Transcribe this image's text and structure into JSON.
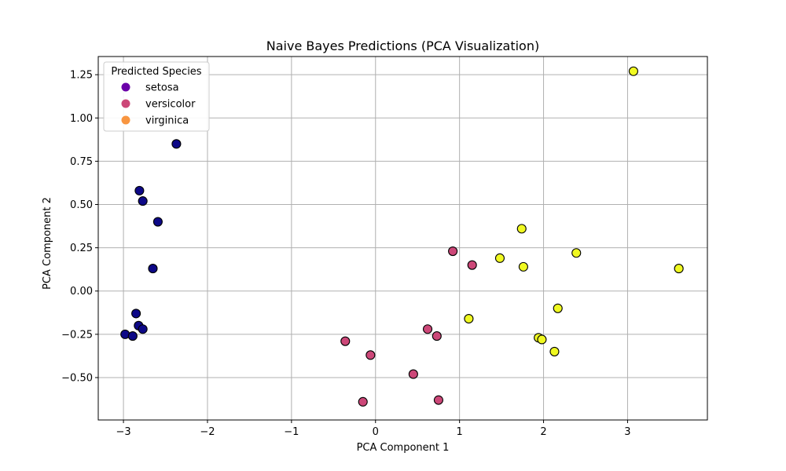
{
  "chart_data": {
    "type": "scatter",
    "title": "Naive Bayes Predictions (PCA Visualization)",
    "xlabel": "PCA Component 1",
    "ylabel": "PCA Component 2",
    "xlim": [
      -3.3,
      3.95
    ],
    "ylim": [
      -0.745,
      1.355
    ],
    "xticks": [
      -3,
      -2,
      -1,
      0,
      1,
      2,
      3
    ],
    "xtick_labels": [
      "−3",
      "−2",
      "−1",
      "0",
      "1",
      "2",
      "3"
    ],
    "yticks": [
      -0.5,
      -0.25,
      0.0,
      0.25,
      0.5,
      0.75,
      1.0,
      1.25
    ],
    "ytick_labels": [
      "−0.50",
      "−0.25",
      "0.00",
      "0.25",
      "0.50",
      "0.75",
      "1.00",
      "1.25"
    ],
    "grid": true,
    "legend": {
      "title": "Predicted Species",
      "placement": "top-left",
      "entries": [
        {
          "name": "setosa",
          "color": "#6a00a8"
        },
        {
          "name": "versicolor",
          "color": "#cc4778"
        },
        {
          "name": "virginica",
          "color": "#f89540"
        }
      ]
    },
    "series": [
      {
        "name": "setosa",
        "color": "#0d0887",
        "points": [
          [
            -2.37,
            0.85
          ],
          [
            -2.81,
            0.58
          ],
          [
            -2.77,
            0.52
          ],
          [
            -2.59,
            0.4
          ],
          [
            -2.65,
            0.13
          ],
          [
            -2.85,
            -0.13
          ],
          [
            -2.82,
            -0.2
          ],
          [
            -2.77,
            -0.22
          ],
          [
            -2.98,
            -0.25
          ],
          [
            -2.89,
            -0.26
          ]
        ]
      },
      {
        "name": "versicolor",
        "color": "#cc4778",
        "points": [
          [
            0.92,
            0.23
          ],
          [
            1.15,
            0.15
          ],
          [
            0.62,
            -0.22
          ],
          [
            0.73,
            -0.26
          ],
          [
            -0.36,
            -0.29
          ],
          [
            -0.06,
            -0.37
          ],
          [
            0.45,
            -0.48
          ],
          [
            -0.15,
            -0.64
          ],
          [
            0.75,
            -0.63
          ]
        ]
      },
      {
        "name": "virginica",
        "color": "#f0f921",
        "points": [
          [
            3.07,
            1.27
          ],
          [
            1.74,
            0.36
          ],
          [
            1.48,
            0.19
          ],
          [
            2.39,
            0.22
          ],
          [
            1.76,
            0.14
          ],
          [
            3.61,
            0.13
          ],
          [
            2.17,
            -0.1
          ],
          [
            1.11,
            -0.16
          ],
          [
            1.94,
            -0.27
          ],
          [
            1.98,
            -0.28
          ],
          [
            2.13,
            -0.35
          ]
        ]
      }
    ]
  }
}
